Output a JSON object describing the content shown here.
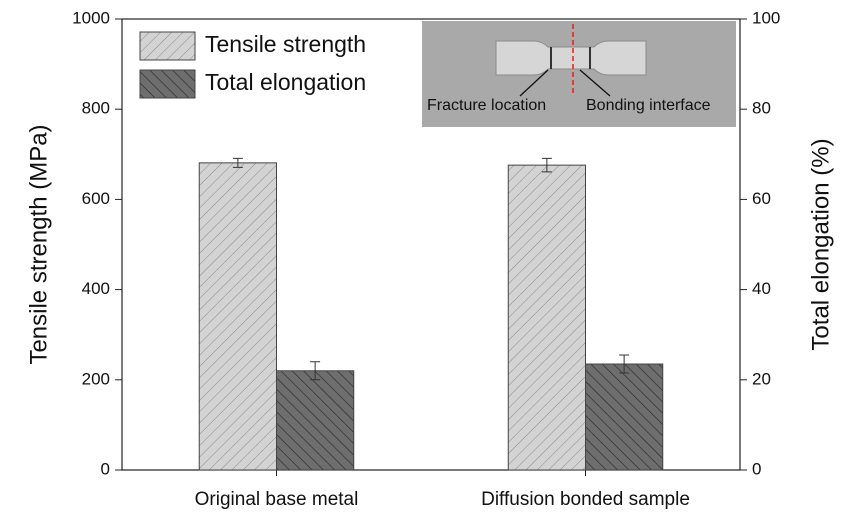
{
  "chart_data": {
    "type": "bar",
    "categories": [
      "Original base metal",
      "Diffusion bonded sample"
    ],
    "series": [
      {
        "name": "Tensile strength",
        "color": "#cfcfcf",
        "values": [
          681,
          676
        ],
        "errors": [
          10,
          15
        ]
      },
      {
        "name": "Total elongation",
        "color": "#707070",
        "values": [
          22,
          23.5
        ],
        "errors": [
          2,
          2
        ],
        "axis": "y2"
      }
    ],
    "ylabel": "Tensile strength (MPa)",
    "y2label": "Total elongation (%)",
    "ylim": [
      0,
      1000
    ],
    "yticks": [
      0,
      200,
      400,
      600,
      800,
      1000
    ],
    "y2lim": [
      0,
      100
    ],
    "y2ticks": [
      0,
      20,
      40,
      60,
      80,
      100
    ],
    "legend": "upper left",
    "annotations": [
      "Fracture location",
      "Bonding interface"
    ]
  }
}
